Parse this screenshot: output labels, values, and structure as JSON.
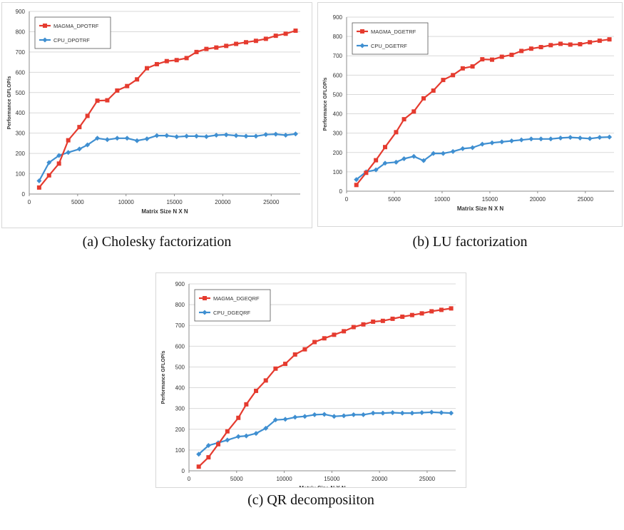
{
  "colors": {
    "magma": "#e53b2f",
    "cpu": "#3f8fd1",
    "grid": "#d9d9d9",
    "axis": "#8c8c8c",
    "text": "#333333"
  },
  "chart_data": [
    {
      "type": "line",
      "caption": "(a) Cholesky factorization",
      "xlabel": "Matrix Size N X N",
      "ylabel": "Performance GFLOP/s",
      "xlim": [
        0,
        28000
      ],
      "ylim": [
        0,
        900
      ],
      "xticks": [
        0,
        5000,
        10000,
        15000,
        20000,
        25000
      ],
      "yticks": [
        0,
        100,
        200,
        300,
        400,
        500,
        600,
        700,
        800,
        900
      ],
      "legend_position": "top-left",
      "grid": true,
      "x": [
        1024,
        2048,
        3072,
        4032,
        5184,
        6016,
        7040,
        8064,
        9088,
        10112,
        11136,
        12160,
        13184,
        14208,
        15232,
        16256,
        17280,
        18304,
        19328,
        20352,
        21376,
        22400,
        23424,
        24448,
        25472,
        26496,
        27520
      ],
      "series": [
        {
          "name": "MAGMA_DPOTRF",
          "color": "#e53b2f",
          "marker": "square",
          "values": [
            32,
            92,
            150,
            265,
            330,
            385,
            460,
            462,
            510,
            532,
            565,
            620,
            640,
            655,
            660,
            670,
            700,
            715,
            722,
            730,
            740,
            748,
            755,
            765,
            780,
            790,
            805
          ]
        },
        {
          "name": "CPU_DPOTRF",
          "color": "#3f8fd1",
          "marker": "diamond",
          "values": [
            65,
            155,
            190,
            205,
            222,
            242,
            275,
            268,
            275,
            275,
            263,
            272,
            288,
            288,
            282,
            285,
            285,
            283,
            290,
            292,
            288,
            285,
            285,
            293,
            295,
            290,
            296
          ]
        }
      ]
    },
    {
      "type": "line",
      "caption": "(b) LU factorization",
      "xlabel": "Matrix Size N X N",
      "ylabel": "Performance GFLOP/s",
      "xlim": [
        0,
        28000
      ],
      "ylim": [
        0,
        900
      ],
      "xticks": [
        0,
        5000,
        10000,
        15000,
        20000,
        25000
      ],
      "yticks": [
        0,
        100,
        200,
        300,
        400,
        500,
        600,
        700,
        800,
        900
      ],
      "legend_position": "top-left",
      "grid": true,
      "x": [
        1024,
        2048,
        3072,
        4032,
        5184,
        6016,
        7040,
        8064,
        9088,
        10112,
        11136,
        12160,
        13184,
        14208,
        15232,
        16256,
        17280,
        18304,
        19328,
        20352,
        21376,
        22400,
        23424,
        24448,
        25472,
        26496,
        27520
      ],
      "series": [
        {
          "name": "MAGMA_DGETRF",
          "color": "#e53b2f",
          "marker": "square",
          "values": [
            32,
            95,
            160,
            228,
            305,
            372,
            412,
            480,
            520,
            575,
            600,
            635,
            645,
            682,
            680,
            695,
            705,
            725,
            737,
            745,
            755,
            762,
            758,
            760,
            770,
            778,
            785
          ]
        },
        {
          "name": "CPU_DGETRF",
          "color": "#3f8fd1",
          "marker": "diamond",
          "values": [
            60,
            100,
            110,
            145,
            150,
            168,
            180,
            158,
            195,
            195,
            205,
            220,
            225,
            243,
            250,
            255,
            260,
            265,
            270,
            270,
            270,
            275,
            278,
            275,
            272,
            278,
            280
          ]
        }
      ]
    },
    {
      "type": "line",
      "caption": "(c) QR decomposiiton",
      "xlabel": "Matrix Size N X N",
      "ylabel": "Performance GFLOP/s",
      "xlim": [
        0,
        28000
      ],
      "ylim": [
        0,
        900
      ],
      "xticks": [
        0,
        5000,
        10000,
        15000,
        20000,
        25000
      ],
      "yticks": [
        0,
        100,
        200,
        300,
        400,
        500,
        600,
        700,
        800,
        900
      ],
      "legend_position": "top-left",
      "grid": true,
      "x": [
        1024,
        2048,
        3072,
        4032,
        5184,
        6016,
        7040,
        8064,
        9088,
        10112,
        11136,
        12160,
        13184,
        14208,
        15232,
        16256,
        17280,
        18304,
        19328,
        20352,
        21376,
        22400,
        23424,
        24448,
        25472,
        26496,
        27520
      ],
      "series": [
        {
          "name": "MAGMA_DGEQRF",
          "color": "#e53b2f",
          "marker": "square",
          "values": [
            20,
            65,
            128,
            190,
            255,
            320,
            385,
            435,
            492,
            515,
            560,
            585,
            620,
            638,
            655,
            672,
            692,
            705,
            718,
            722,
            732,
            742,
            750,
            758,
            768,
            775,
            782
          ]
        },
        {
          "name": "CPU_DGEQRF",
          "color": "#3f8fd1",
          "marker": "diamond",
          "values": [
            80,
            122,
            135,
            148,
            165,
            168,
            180,
            205,
            245,
            248,
            258,
            262,
            270,
            272,
            262,
            265,
            270,
            270,
            278,
            278,
            280,
            278,
            278,
            280,
            282,
            280,
            278
          ]
        }
      ]
    }
  ]
}
